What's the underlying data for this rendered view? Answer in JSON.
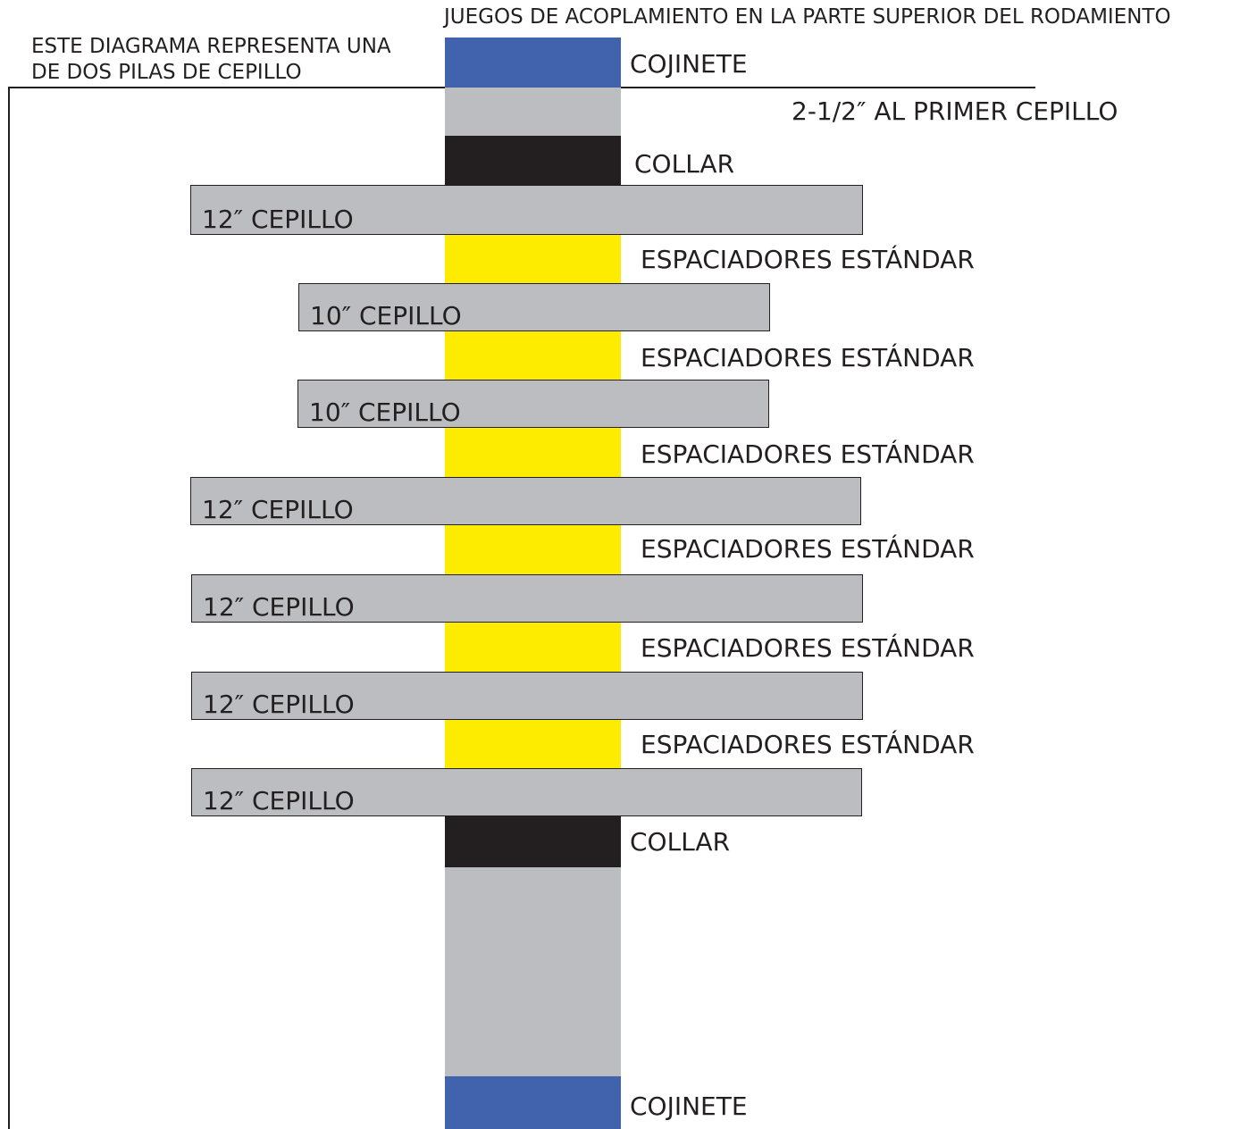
{
  "note_top": "JUEGOS DE ACOPLAMIENTO EN LA PARTE SUPERIOR DEL RODAMIENTO",
  "note_left_line1": "ESTE DIAGRAMA REPRESENTA UNA",
  "note_left_line2": "DE DOS PILAS DE CEPILLO",
  "distance_note": "2-1/2″ AL PRIMER CEPILLO",
  "components": {
    "bearing_top": "COJINETE",
    "collar_top": "COLLAR",
    "collar_bottom": "COLLAR",
    "bearing_bottom": "COJINETE"
  },
  "spacers": [
    "ESPACIADORES ESTÁNDAR",
    "ESPACIADORES ESTÁNDAR",
    "ESPACIADORES ESTÁNDAR",
    "ESPACIADORES ESTÁNDAR",
    "ESPACIADORES ESTÁNDAR",
    "ESPACIADORES ESTÁNDAR"
  ],
  "brushes": [
    "12″ CEPILLO",
    "10″ CEPILLO",
    "10″ CEPILLO",
    "12″ CEPILLO",
    "12″ CEPILLO",
    "12″ CEPILLO",
    "12″ CEPILLO"
  ],
  "colors": {
    "bearing": "#4163ad",
    "collar": "#231f20",
    "shaft": "#bbbdc0",
    "spacer": "#fdec00",
    "brush": "#bbbdc0"
  }
}
